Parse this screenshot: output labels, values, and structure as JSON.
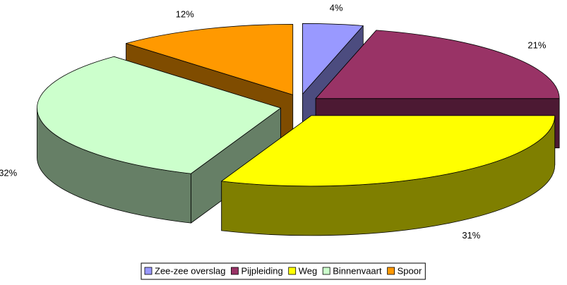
{
  "chart_data": {
    "type": "pie3d",
    "categories": [
      "Zee-zee overslag",
      "Pijpleiding",
      "Weg",
      "Binnenvaart",
      "Spoor"
    ],
    "values": [
      4,
      21,
      31,
      32,
      12
    ],
    "value_labels": [
      "4%",
      "21%",
      "31%",
      "32%",
      "12%"
    ],
    "colors": [
      "#9999ff",
      "#993366",
      "#ffff00",
      "#ccffcc",
      "#ff9900"
    ],
    "legend": "bottom"
  }
}
